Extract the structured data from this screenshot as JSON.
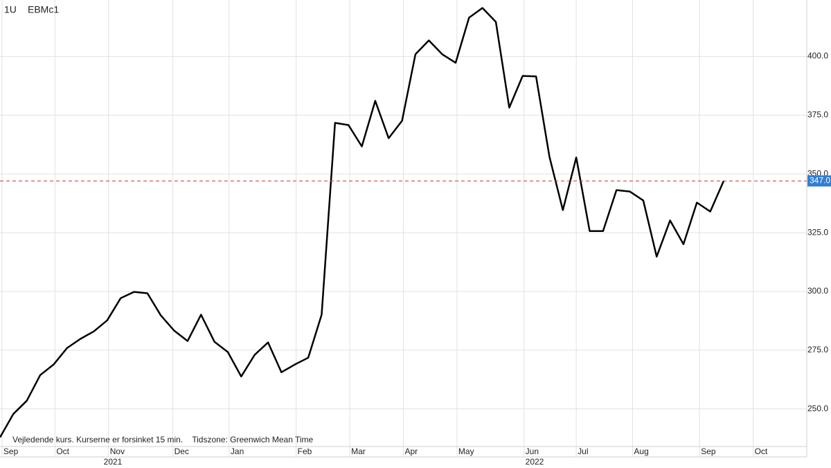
{
  "header": {
    "interval": "1U",
    "symbol": "EBMc1"
  },
  "note": "Vejledende kurs. Kurserne er forsinket 15 min.    Tidszone: Greenwich Mean Time",
  "years": [
    "2021",
    "2022"
  ],
  "chart_data": {
    "type": "line",
    "x": [
      0,
      1,
      2,
      3,
      4,
      5,
      6,
      7,
      8,
      9,
      10,
      11,
      12,
      13,
      14,
      15,
      16,
      17,
      18,
      19,
      20,
      21,
      22,
      23,
      24,
      25,
      26,
      27,
      28,
      29,
      30,
      31,
      32,
      33,
      34,
      35,
      36,
      37,
      38,
      39,
      40,
      41,
      42,
      43,
      44,
      45,
      46,
      47,
      48,
      49,
      50,
      51,
      52,
      53,
      54
    ],
    "series": [
      {
        "color": "#000000",
        "values": [
          237.9,
          247.9,
          253.5,
          264.4,
          268.9,
          275.9,
          279.8,
          283.0,
          287.7,
          297.1,
          299.8,
          299.2,
          289.8,
          283.3,
          278.9,
          290.1,
          278.6,
          274.2,
          263.8,
          273.0,
          278.3,
          265.6,
          268.9,
          271.8,
          290.1,
          371.7,
          370.8,
          361.7,
          381.1,
          365.2,
          372.6,
          400.9,
          406.8,
          400.9,
          397.3,
          416.5,
          420.6,
          414.7,
          378.2,
          391.7,
          391.5,
          357.3,
          334.6,
          357.0,
          325.7,
          325.7,
          343.1,
          342.5,
          338.7,
          314.8,
          330.2,
          320.1,
          337.8,
          334.0,
          347.0
        ]
      }
    ],
    "xlim": [
      0,
      60.2
    ],
    "xticks": [
      {
        "value": 0.15,
        "label": "Sep"
      },
      {
        "value": 4.1,
        "label": "Oct"
      },
      {
        "value": 8.1,
        "label": "Nov"
      },
      {
        "value": 12.9,
        "label": "Dec"
      },
      {
        "value": 17.1,
        "label": "Jan"
      },
      {
        "value": 22.1,
        "label": "Feb"
      },
      {
        "value": 26.1,
        "label": "Mar"
      },
      {
        "value": 30.1,
        "label": "Apr"
      },
      {
        "value": 34.1,
        "label": "May"
      },
      {
        "value": 39.1,
        "label": "Jun"
      },
      {
        "value": 43.0,
        "label": "Jul"
      },
      {
        "value": 47.2,
        "label": "Aug"
      },
      {
        "value": 52.2,
        "label": "Sep"
      },
      {
        "value": 56.2,
        "label": "Oct"
      }
    ],
    "ylim": [
      234,
      424
    ],
    "yticks": [
      {
        "value": 250,
        "label": "250.0"
      },
      {
        "value": 275,
        "label": "275.0"
      },
      {
        "value": 300,
        "label": "300.0"
      },
      {
        "value": 325,
        "label": "325.0"
      },
      {
        "value": 350,
        "label": "350.0"
      },
      {
        "value": 375,
        "label": "375.0"
      },
      {
        "value": 400,
        "label": "400.0"
      }
    ],
    "last_price": {
      "value": 347,
      "label": "347.0",
      "color": "#c0392b",
      "badge_color": "#2f7ed8"
    },
    "grid": true
  }
}
